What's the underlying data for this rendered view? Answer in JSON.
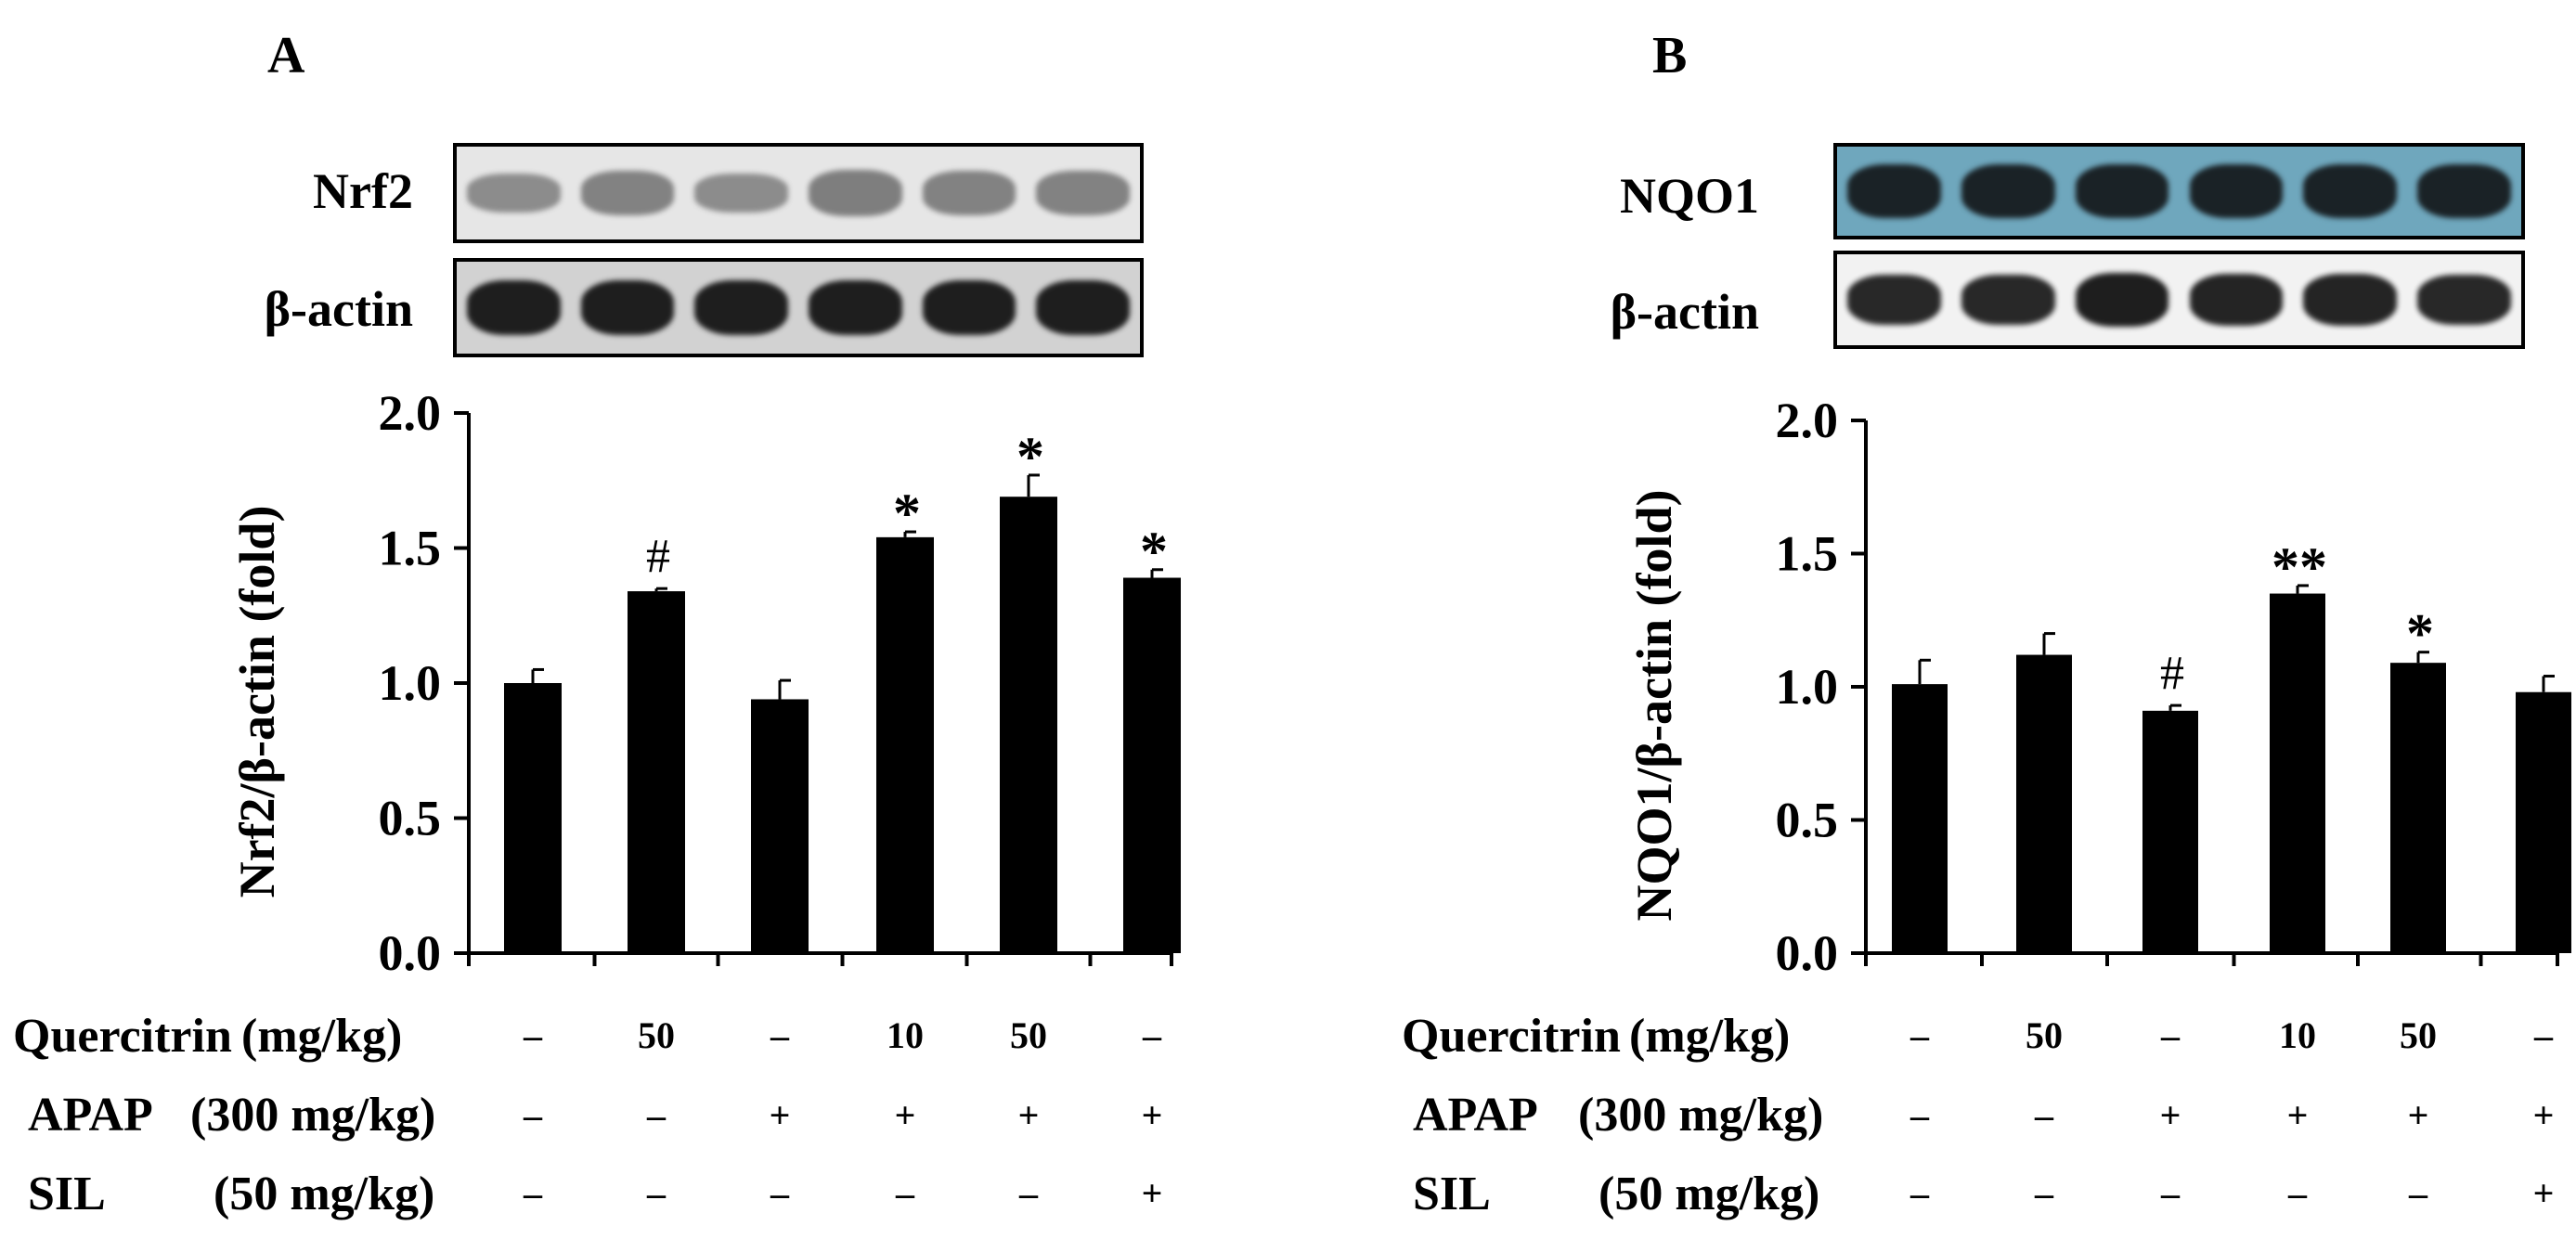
{
  "panels": [
    {
      "letter": "A",
      "blots": [
        {
          "label": "Nrf2",
          "background": "#e6e6e6",
          "band_color": "#6e6e6e",
          "intensity": [
            0.55,
            0.7,
            0.55,
            0.75,
            0.7,
            0.7
          ]
        },
        {
          "label": "β-actin",
          "background": "#d2d2d2",
          "band_color": "#1e1e1e",
          "intensity": [
            1,
            1,
            1,
            1,
            1,
            1
          ]
        }
      ],
      "treatments": [
        {
          "label": "Quercitrin",
          "unit": "(mg/kg)",
          "values": [
            "–",
            "50",
            "–",
            "10",
            "50",
            "–"
          ]
        },
        {
          "label": "APAP",
          "unit": "(300 mg/kg)",
          "values": [
            "–",
            "–",
            "+",
            "+",
            "+",
            "+"
          ]
        },
        {
          "label": "SIL",
          "unit": "(50 mg/kg)",
          "values": [
            "–",
            "–",
            "–",
            "–",
            "–",
            "+"
          ]
        }
      ]
    },
    {
      "letter": "B",
      "blots": [
        {
          "label": "NQO1",
          "background": "#6fa7bd",
          "band_color": "#1a2226",
          "intensity": [
            1,
            1,
            1,
            1,
            1,
            1
          ]
        },
        {
          "label": "β-actin",
          "background": "#f2f2f2",
          "band_color": "#1e1e1e",
          "intensity": [
            0.9,
            0.9,
            1,
            0.95,
            0.95,
            0.9
          ]
        }
      ],
      "treatments": [
        {
          "label": "Quercitrin",
          "unit": "(mg/kg)",
          "values": [
            "–",
            "50",
            "–",
            "10",
            "50",
            "–"
          ]
        },
        {
          "label": "APAP",
          "unit": "(300 mg/kg)",
          "values": [
            "–",
            "–",
            "+",
            "+",
            "+",
            "+"
          ]
        },
        {
          "label": "SIL",
          "unit": "(50 mg/kg)",
          "values": [
            "–",
            "–",
            "–",
            "–",
            "–",
            "+"
          ]
        }
      ]
    }
  ],
  "chart_data": [
    {
      "type": "bar",
      "title": "",
      "xlabel": "",
      "ylabel": "Nrf2/β-actin (fold)",
      "ylim": [
        0,
        2.0
      ],
      "yticks": [
        "0.0",
        "0.5",
        "1.0",
        "1.5",
        "2.0"
      ],
      "values": [
        1.0,
        1.34,
        0.94,
        1.54,
        1.69,
        1.39
      ],
      "errors": [
        0.05,
        0.01,
        0.07,
        0.02,
        0.08,
        0.03
      ],
      "annotations": [
        "",
        "#",
        "",
        "*",
        "*",
        "*"
      ],
      "bar_color": "#000000",
      "grid": false
    },
    {
      "type": "bar",
      "title": "",
      "xlabel": "",
      "ylabel": "NQO1/β-actin (fold)",
      "ylim": [
        0,
        2.0
      ],
      "yticks": [
        "0.0",
        "0.5",
        "1.0",
        "1.5",
        "2.0"
      ],
      "values": [
        1.01,
        1.12,
        0.91,
        1.35,
        1.09,
        0.98
      ],
      "errors": [
        0.09,
        0.08,
        0.02,
        0.03,
        0.04,
        0.06
      ],
      "annotations": [
        "",
        "",
        "#",
        "**",
        "*",
        ""
      ],
      "bar_color": "#000000",
      "grid": false
    }
  ]
}
